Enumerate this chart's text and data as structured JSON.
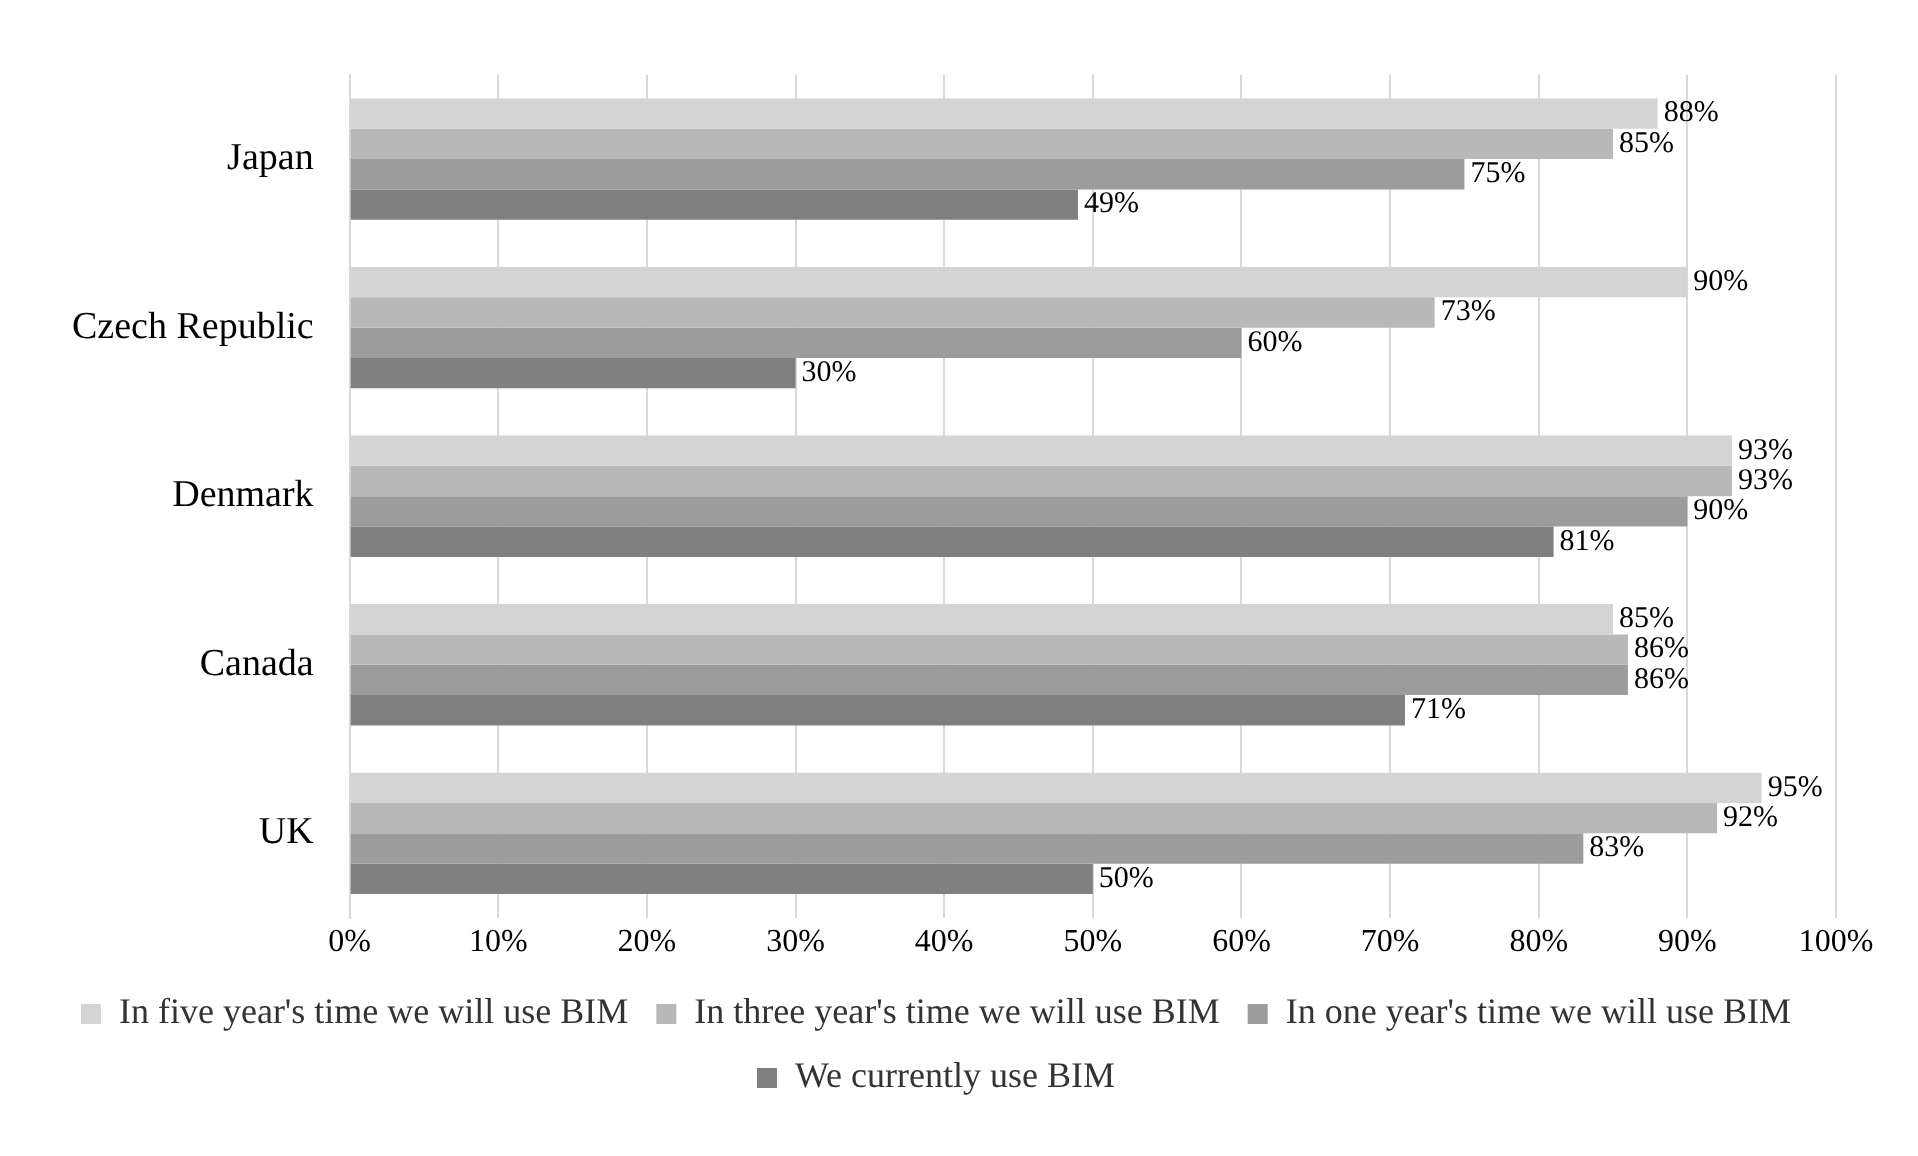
{
  "chart_data": {
    "type": "bar",
    "orientation": "horizontal",
    "categories": [
      "Japan",
      "Czech Republic",
      "Denmark",
      "Canada",
      "UK"
    ],
    "series": [
      {
        "name": "In five year's time we will use BIM",
        "color": "#d4d4d4",
        "values": [
          88,
          90,
          93,
          85,
          95
        ],
        "value_labels": [
          "88%",
          "90%",
          "93%",
          "85%",
          "95%"
        ]
      },
      {
        "name": "In three year's time we will use BIM",
        "color": "#b8b8b8",
        "values": [
          85,
          73,
          93,
          86,
          92
        ],
        "value_labels": [
          "85%",
          "73%",
          "93%",
          "86%",
          "92%"
        ]
      },
      {
        "name": "In one year's time we will use BIM",
        "color": "#9c9c9c",
        "values": [
          75,
          60,
          90,
          86,
          83
        ],
        "value_labels": [
          "75%",
          "60%",
          "90%",
          "86%",
          "83%"
        ]
      },
      {
        "name": "We currently use BIM",
        "color": "#808080",
        "values": [
          49,
          30,
          81,
          71,
          50
        ],
        "value_labels": [
          "49%",
          "30%",
          "81%",
          "71%",
          "50%"
        ]
      }
    ],
    "xlim": [
      0,
      100
    ],
    "xticks": [
      {
        "value": 0,
        "label": "0%"
      },
      {
        "value": 10,
        "label": "10%"
      },
      {
        "value": 20,
        "label": "20%"
      },
      {
        "value": 30,
        "label": "30%"
      },
      {
        "value": 40,
        "label": "40%"
      },
      {
        "value": 50,
        "label": "50%"
      },
      {
        "value": 60,
        "label": "60%"
      },
      {
        "value": 70,
        "label": "70%"
      },
      {
        "value": 80,
        "label": "80%"
      },
      {
        "value": 90,
        "label": "90%"
      },
      {
        "value": 100,
        "label": "100%"
      }
    ],
    "grid": "x",
    "legend": "bottom"
  }
}
